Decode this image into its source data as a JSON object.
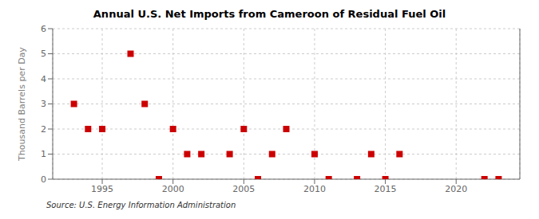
{
  "chart_data": {
    "type": "scatter",
    "title": "Annual U.S. Net Imports from Cameroon of Residual Fuel Oil",
    "ylabel": "Thousand Barrels per Day",
    "source": "Source: U.S. Energy Information Administration",
    "x": [
      1993,
      1994,
      1995,
      1997,
      1998,
      1999,
      2000,
      2001,
      2002,
      2004,
      2005,
      2006,
      2007,
      2008,
      2010,
      2011,
      2013,
      2014,
      2015,
      2016,
      2022,
      2023
    ],
    "values": [
      3,
      2,
      2,
      5,
      3,
      0,
      2,
      1,
      1,
      1,
      2,
      0,
      1,
      2,
      1,
      0,
      0,
      1,
      0,
      1,
      0,
      0
    ],
    "xlim": [
      1991.5,
      2024.5
    ],
    "ylim": [
      0,
      6
    ],
    "xticks": [
      1995,
      2000,
      2005,
      2010,
      2015,
      2020
    ],
    "yticks": [
      0,
      1,
      2,
      3,
      4,
      5,
      6
    ],
    "color": "#cc0000",
    "marker": "square",
    "grid": true
  }
}
